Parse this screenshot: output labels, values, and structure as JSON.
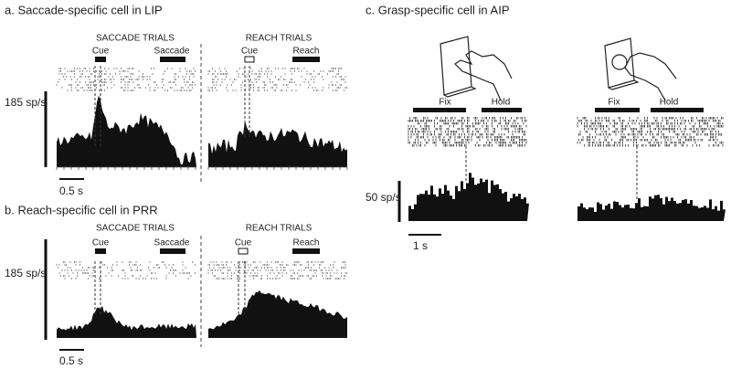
{
  "panels": [
    {
      "title": "a. Saccade-specific cell in LIP",
      "scale_y": "185 sp/s",
      "scale_x": "0.5 s",
      "conditions": [
        {
          "header": "SACCADE TRIALS",
          "cue": "Cue",
          "event": "Saccade"
        },
        {
          "header": "REACH TRIALS",
          "cue": "Cue",
          "event": "Reach"
        }
      ]
    },
    {
      "title": "b. Reach-specific cell in PRR",
      "scale_y": "185 sp/s",
      "scale_x": "0.5 s",
      "conditions": [
        {
          "header": "SACCADE TRIALS",
          "cue": "Cue",
          "event": "Saccade"
        },
        {
          "header": "REACH TRIALS",
          "cue": "Cue",
          "event": "Reach"
        }
      ]
    },
    {
      "title": "c. Grasp-specific cell in AIP",
      "scale_y": "50 sp/s",
      "scale_x": "1 s",
      "conditions": [
        {
          "fix": "Fix",
          "hold": "Hold"
        },
        {
          "fix": "Fix",
          "hold": "Hold"
        }
      ]
    }
  ]
}
